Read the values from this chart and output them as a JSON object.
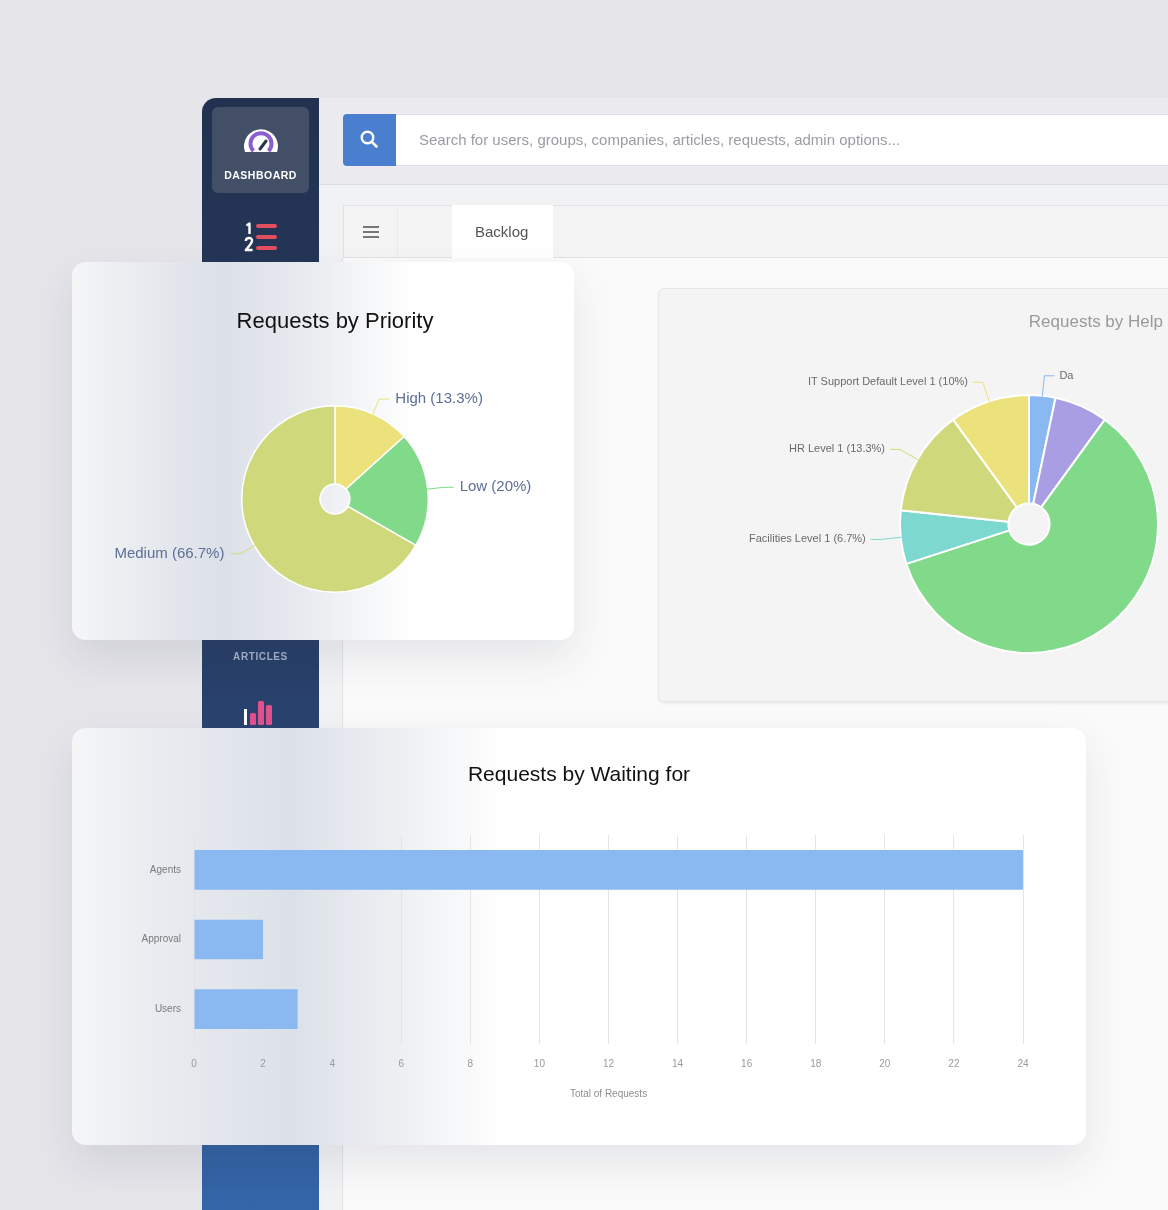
{
  "chart_data": [
    {
      "type": "other",
      "annotations": [
        "DASHBOARD",
        "ARTICLES",
        "Search for users, groups, companies, articles, requests, admin options...",
        "Backlog"
      ]
    },
    {
      "type": "donut",
      "title": "Requests by Priority",
      "categories": [
        "High (13.3%)",
        "Low (20%)",
        "Medium (66.7%)"
      ],
      "values": [
        13.3,
        20,
        66.7
      ],
      "colors": [
        "#ece27c",
        "#80da8a",
        "#cfd97b"
      ]
    },
    {
      "type": "donut",
      "title": "Requests by Help",
      "categories": [
        "Da",
        null,
        null,
        "Facilities Level 1 (6.7%)",
        "HR Level 1 (13.3%)",
        "IT Support Default Level 1 (10%)"
      ],
      "values": [
        3.3,
        6.7,
        60,
        6.7,
        13.3,
        10
      ],
      "colors": [
        "#8ab8f0",
        "#a99de3",
        "#80da8a",
        "#7dd8cf",
        "#cfd97b",
        "#ece27c"
      ]
    },
    {
      "type": "bar",
      "orientation": "horizontal",
      "title": "Requests by Waiting for",
      "categories": [
        "Agents",
        "Approval",
        "Users"
      ],
      "values": [
        24,
        2,
        3
      ],
      "color": "#8ab8f0",
      "xlabel": "Total of Requests",
      "xlim": [
        0,
        24
      ],
      "xticks": [
        0,
        2,
        4,
        6,
        8,
        10,
        12,
        14,
        16,
        18,
        20,
        22,
        24
      ],
      "grid": "x"
    }
  ]
}
